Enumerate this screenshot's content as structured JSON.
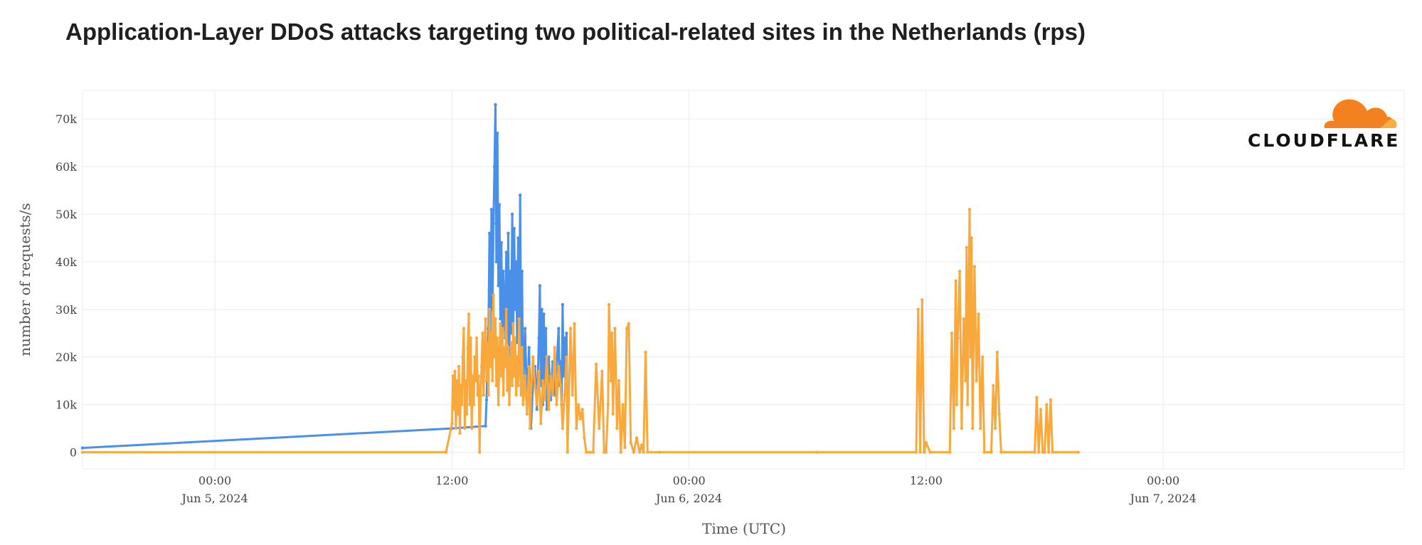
{
  "title": "Application-Layer DDoS attacks targeting two political-related sites in the Netherlands (rps)",
  "logo": {
    "text": "CLOUDFLARE",
    "icon": "cloud-icon",
    "color": "#f48120"
  },
  "chart_data": {
    "type": "line",
    "title": "Application-Layer DDoS attacks targeting two political-related sites in the Netherlands (rps)",
    "xlabel": "Time (UTC)",
    "ylabel": "number of requests/s",
    "x_unit": "hours since 2024-06-05 00:00 UTC",
    "xlim": [
      -6.7,
      60.2
    ],
    "ylim": [
      -3500,
      76000
    ],
    "grid": true,
    "y_ticks": [
      {
        "value": 0,
        "label": "0"
      },
      {
        "value": 10000,
        "label": "10k"
      },
      {
        "value": 20000,
        "label": "20k"
      },
      {
        "value": 30000,
        "label": "30k"
      },
      {
        "value": 40000,
        "label": "40k"
      },
      {
        "value": 50000,
        "label": "50k"
      },
      {
        "value": 60000,
        "label": "60k"
      },
      {
        "value": 70000,
        "label": "70k"
      }
    ],
    "x_ticks": [
      {
        "value": 0,
        "time": "00:00",
        "date": "Jun 5, 2024"
      },
      {
        "value": 12,
        "time": "12:00",
        "date": ""
      },
      {
        "value": 24,
        "time": "00:00",
        "date": "Jun 6, 2024"
      },
      {
        "value": 36,
        "time": "12:00",
        "date": ""
      },
      {
        "value": 48,
        "time": "00:00",
        "date": "Jun 7, 2024"
      }
    ],
    "series": [
      {
        "name": "",
        "color": "#4a90e9",
        "points": [
          [
            -6.7,
            900
          ],
          [
            12.0,
            5000
          ],
          [
            13.7,
            5500
          ],
          [
            13.75,
            11000
          ],
          [
            13.85,
            26000
          ],
          [
            13.9,
            46000
          ],
          [
            13.95,
            22000
          ],
          [
            14.0,
            51000
          ],
          [
            14.05,
            30000
          ],
          [
            14.1,
            48000
          ],
          [
            14.15,
            60000
          ],
          [
            14.2,
            73000
          ],
          [
            14.25,
            40000
          ],
          [
            14.3,
            67000
          ],
          [
            14.35,
            35000
          ],
          [
            14.4,
            52000
          ],
          [
            14.45,
            28000
          ],
          [
            14.5,
            44000
          ],
          [
            14.55,
            20000
          ],
          [
            14.6,
            38000
          ],
          [
            14.7,
            24000
          ],
          [
            14.75,
            42000
          ],
          [
            14.8,
            23000
          ],
          [
            14.85,
            46000
          ],
          [
            14.9,
            20000
          ],
          [
            14.95,
            38000
          ],
          [
            15.0,
            25000
          ],
          [
            15.05,
            50000
          ],
          [
            15.1,
            22000
          ],
          [
            15.15,
            47000
          ],
          [
            15.2,
            30000
          ],
          [
            15.25,
            40000
          ],
          [
            15.3,
            23000
          ],
          [
            15.35,
            45000
          ],
          [
            15.4,
            22000
          ],
          [
            15.45,
            54000
          ],
          [
            15.5,
            20000
          ],
          [
            15.55,
            38000
          ],
          [
            15.6,
            12000
          ],
          [
            15.7,
            26000
          ],
          [
            15.8,
            10000
          ],
          [
            15.9,
            22000
          ],
          [
            16.0,
            5000
          ],
          [
            16.1,
            14000
          ],
          [
            16.2,
            18000
          ],
          [
            16.3,
            9000
          ],
          [
            16.4,
            24000
          ],
          [
            16.45,
            35000
          ],
          [
            16.5,
            14000
          ],
          [
            16.55,
            30000
          ],
          [
            16.6,
            10000
          ],
          [
            16.65,
            29000
          ],
          [
            16.7,
            12000
          ],
          [
            16.75,
            26000
          ],
          [
            16.8,
            9000
          ],
          [
            16.9,
            20000
          ],
          [
            17.0,
            11000
          ],
          [
            17.1,
            19000
          ],
          [
            17.2,
            12000
          ],
          [
            17.3,
            18000
          ],
          [
            17.4,
            26000
          ],
          [
            17.45,
            14000
          ],
          [
            17.5,
            19000
          ],
          [
            17.55,
            10000
          ],
          [
            17.6,
            31000
          ],
          [
            17.65,
            16000
          ],
          [
            17.7,
            24000
          ],
          [
            17.75,
            13000
          ],
          [
            17.8,
            25000
          ],
          [
            17.85,
            4000
          ]
        ]
      },
      {
        "name": "",
        "color": "#f9a93c",
        "points": [
          [
            -6.7,
            0
          ],
          [
            11.7,
            0
          ],
          [
            12.0,
            6000
          ],
          [
            12.05,
            16000
          ],
          [
            12.1,
            9000
          ],
          [
            12.15,
            17000
          ],
          [
            12.2,
            5000
          ],
          [
            12.25,
            15000
          ],
          [
            12.3,
            8000
          ],
          [
            12.35,
            18000
          ],
          [
            12.4,
            4000
          ],
          [
            12.45,
            14000
          ],
          [
            12.5,
            10000
          ],
          [
            12.55,
            20000
          ],
          [
            12.6,
            26000
          ],
          [
            12.65,
            5000
          ],
          [
            12.7,
            15000
          ],
          [
            12.75,
            8000
          ],
          [
            12.8,
            22000
          ],
          [
            12.85,
            29000
          ],
          [
            12.9,
            10000
          ],
          [
            12.95,
            24000
          ],
          [
            13.0,
            5000
          ],
          [
            13.05,
            16000
          ],
          [
            13.1,
            10000
          ],
          [
            13.15,
            20000
          ],
          [
            13.2,
            15000
          ],
          [
            13.25,
            24000
          ],
          [
            13.3,
            12000
          ],
          [
            13.35,
            16000
          ],
          [
            13.4,
            0
          ],
          [
            13.45,
            12000
          ],
          [
            13.5,
            18000
          ],
          [
            13.55,
            25000
          ],
          [
            13.6,
            12000
          ],
          [
            13.65,
            22000
          ],
          [
            13.7,
            28000
          ],
          [
            13.75,
            15000
          ],
          [
            13.8,
            23000
          ],
          [
            13.85,
            12000
          ],
          [
            13.9,
            30000
          ],
          [
            13.95,
            18000
          ],
          [
            14.0,
            25000
          ],
          [
            14.05,
            15000
          ],
          [
            14.1,
            33000
          ],
          [
            14.15,
            20000
          ],
          [
            14.2,
            28000
          ],
          [
            14.25,
            14000
          ],
          [
            14.3,
            24000
          ],
          [
            14.35,
            10000
          ],
          [
            14.4,
            20000
          ],
          [
            14.45,
            27000
          ],
          [
            14.5,
            16000
          ],
          [
            14.55,
            26000
          ],
          [
            14.6,
            12000
          ],
          [
            14.65,
            22000
          ],
          [
            14.7,
            18000
          ],
          [
            14.75,
            30000
          ],
          [
            14.8,
            13000
          ],
          [
            14.85,
            22000
          ],
          [
            14.9,
            10000
          ],
          [
            14.95,
            17000
          ],
          [
            15.0,
            23000
          ],
          [
            15.05,
            14000
          ],
          [
            15.1,
            27000
          ],
          [
            15.15,
            16000
          ],
          [
            15.2,
            24000
          ],
          [
            15.25,
            12000
          ],
          [
            15.3,
            20000
          ],
          [
            15.35,
            14000
          ],
          [
            15.4,
            28000
          ],
          [
            15.45,
            18000
          ],
          [
            15.5,
            12000
          ],
          [
            15.55,
            22000
          ],
          [
            15.6,
            10000
          ],
          [
            15.7,
            16000
          ],
          [
            15.8,
            8000
          ],
          [
            15.9,
            18000
          ],
          [
            15.95,
            5000
          ],
          [
            16.0,
            12000
          ],
          [
            16.1,
            20000
          ],
          [
            16.2,
            14000
          ],
          [
            16.3,
            10000
          ],
          [
            16.4,
            17000
          ],
          [
            16.5,
            6000
          ],
          [
            16.6,
            15000
          ],
          [
            16.7,
            11000
          ],
          [
            16.8,
            20000
          ],
          [
            16.9,
            9000
          ],
          [
            17.0,
            16000
          ],
          [
            17.1,
            12000
          ],
          [
            17.2,
            22000
          ],
          [
            17.3,
            10000
          ],
          [
            17.4,
            18000
          ],
          [
            17.5,
            14000
          ],
          [
            17.6,
            5000
          ],
          [
            17.7,
            12000
          ],
          [
            17.8,
            20000
          ],
          [
            17.85,
            0
          ],
          [
            18.0,
            26000
          ],
          [
            18.1,
            12000
          ],
          [
            18.2,
            27000
          ],
          [
            18.3,
            5000
          ],
          [
            18.4,
            10000
          ],
          [
            18.5,
            7000
          ],
          [
            18.6,
            9000
          ],
          [
            18.7,
            3000
          ],
          [
            18.8,
            0
          ],
          [
            19.0,
            0
          ],
          [
            19.15,
            0
          ],
          [
            19.3,
            18500
          ],
          [
            19.45,
            5000
          ],
          [
            19.6,
            17000
          ],
          [
            19.7,
            0
          ],
          [
            19.8,
            0
          ],
          [
            19.9,
            10000
          ],
          [
            19.95,
            31000
          ],
          [
            20.05,
            15000
          ],
          [
            20.1,
            25000
          ],
          [
            20.15,
            8000
          ],
          [
            20.25,
            26000
          ],
          [
            20.35,
            5000
          ],
          [
            20.45,
            15000
          ],
          [
            20.55,
            0
          ],
          [
            20.65,
            10000
          ],
          [
            20.75,
            1000
          ],
          [
            20.85,
            26000
          ],
          [
            20.95,
            27000
          ],
          [
            21.05,
            2000
          ],
          [
            21.2,
            0
          ],
          [
            21.35,
            3000
          ],
          [
            21.5,
            0
          ],
          [
            21.6,
            1500
          ],
          [
            21.7,
            0
          ],
          [
            21.8,
            21000
          ],
          [
            21.9,
            0
          ],
          [
            22.5,
            0
          ],
          [
            30.5,
            0
          ],
          [
            35.5,
            0
          ],
          [
            35.6,
            30000
          ],
          [
            35.7,
            0
          ],
          [
            35.8,
            32000
          ],
          [
            35.9,
            0
          ],
          [
            36.0,
            2000
          ],
          [
            36.2,
            0
          ],
          [
            37.2,
            0
          ],
          [
            37.3,
            25000
          ],
          [
            37.4,
            5000
          ],
          [
            37.5,
            36000
          ],
          [
            37.55,
            10000
          ],
          [
            37.6,
            24000
          ],
          [
            37.7,
            38000
          ],
          [
            37.8,
            5000
          ],
          [
            37.9,
            28000
          ],
          [
            38.0,
            15000
          ],
          [
            38.05,
            43000
          ],
          [
            38.1,
            10000
          ],
          [
            38.15,
            30000
          ],
          [
            38.2,
            51000
          ],
          [
            38.25,
            20000
          ],
          [
            38.3,
            45000
          ],
          [
            38.35,
            5000
          ],
          [
            38.45,
            39000
          ],
          [
            38.55,
            15000
          ],
          [
            38.65,
            29000
          ],
          [
            38.75,
            5000
          ],
          [
            38.85,
            20000
          ],
          [
            38.95,
            0
          ],
          [
            39.3,
            0
          ],
          [
            39.4,
            14000
          ],
          [
            39.5,
            5000
          ],
          [
            39.6,
            21000
          ],
          [
            39.7,
            8000
          ],
          [
            39.8,
            0
          ],
          [
            41.5,
            0
          ],
          [
            41.6,
            11500
          ],
          [
            41.7,
            0
          ],
          [
            41.8,
            9000
          ],
          [
            41.9,
            0
          ],
          [
            42.0,
            0
          ],
          [
            42.1,
            10000
          ],
          [
            42.2,
            0
          ],
          [
            42.3,
            11000
          ],
          [
            42.4,
            0
          ],
          [
            43.7,
            0
          ]
        ]
      }
    ]
  }
}
